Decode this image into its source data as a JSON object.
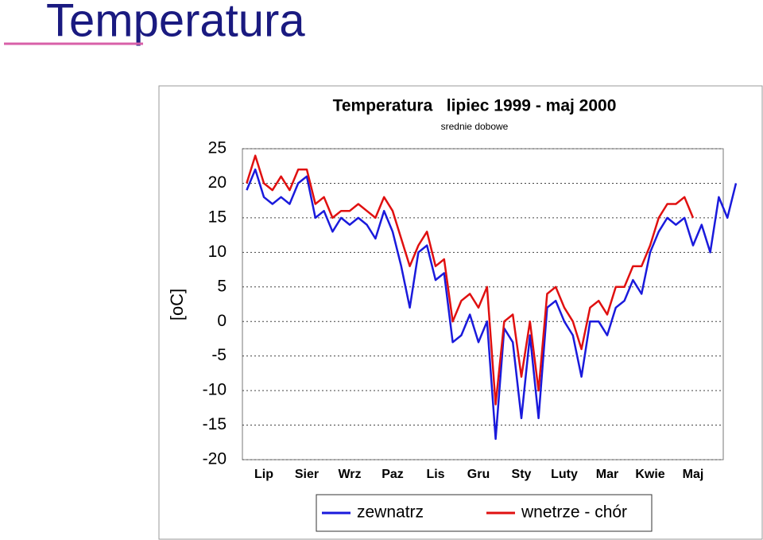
{
  "slide_title": "Temperatura",
  "chart_data": {
    "type": "line",
    "title": "Temperatura   lipiec 1999 - maj 2000",
    "subtitle": "srednie dobowe",
    "y_label": "[oC]",
    "categories": [
      null,
      null,
      "Lip",
      null,
      null,
      null,
      null,
      "Sier",
      null,
      null,
      null,
      null,
      "Wrz",
      null,
      null,
      null,
      null,
      "Paz",
      null,
      null,
      null,
      null,
      "Lis",
      null,
      null,
      null,
      null,
      "Gru",
      null,
      null,
      null,
      null,
      "Sty",
      null,
      null,
      null,
      null,
      "Luty",
      null,
      null,
      null,
      null,
      "Mar",
      null,
      null,
      null,
      null,
      "Kwie",
      null,
      null,
      null,
      null,
      "Maj",
      null,
      null,
      null,
      null,
      null
    ],
    "series": [
      {
        "name": "zewnatrz",
        "color": "#1a1adc",
        "values": [
          19,
          22,
          18,
          17,
          18,
          17,
          20,
          21,
          15,
          16,
          13,
          15,
          14,
          15,
          14,
          12,
          16,
          13,
          8,
          2,
          10,
          11,
          6,
          7,
          -3,
          -2,
          1,
          -3,
          0,
          -17,
          -1,
          -3,
          -14,
          -2,
          -14,
          2,
          3,
          0,
          -2,
          -8,
          0,
          0,
          -2,
          2,
          3,
          6,
          4,
          10,
          13,
          15,
          14,
          15,
          11,
          14,
          10,
          18,
          15,
          20
        ]
      },
      {
        "name": "wnetrze - chór",
        "color": "#e01010",
        "values": [
          20,
          24,
          20,
          19,
          21,
          19,
          22,
          22,
          17,
          18,
          15,
          16,
          16,
          17,
          16,
          15,
          18,
          16,
          12,
          8,
          11,
          13,
          8,
          9,
          0,
          3,
          4,
          2,
          5,
          -12,
          0,
          1,
          -8,
          0,
          -10,
          4,
          5,
          2,
          0,
          -4,
          2,
          3,
          1,
          5,
          5,
          8,
          8,
          11,
          15,
          17,
          17,
          18,
          15,
          null,
          null,
          null,
          null,
          null
        ]
      }
    ],
    "ylim": [
      -20,
      25
    ],
    "yticks": [
      -20,
      -15,
      -10,
      -5,
      0,
      5,
      10,
      15,
      20,
      25
    ],
    "grid": true
  }
}
